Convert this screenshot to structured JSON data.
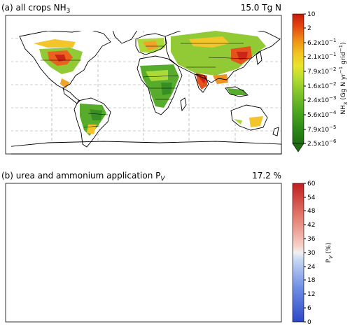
{
  "panels": [
    {
      "title": "(a) all crops NH",
      "title_sub": "3",
      "total": "15.0 Tg N",
      "colorbar": {
        "label_html": "NH3 (Gg N yr-1 grid-1)",
        "label_parts": [
          "NH",
          "3",
          " (Gg N yr",
          "−1",
          " grid",
          "−1",
          ")"
        ],
        "ticks": [
          "10",
          "2",
          "6.2x10-1",
          "2.1x10-1",
          "7.9x10-2",
          "1.6x10-2",
          "2.4x10-3",
          "5.6x10-4",
          "7.9x10-5",
          "2.5x10-6"
        ],
        "tick_html": [
          [
            "10",
            ""
          ],
          [
            "2",
            ""
          ],
          [
            "6.2x10",
            "−1"
          ],
          [
            "2.1x10",
            "−1"
          ],
          [
            "7.9x10",
            "−2"
          ],
          [
            "1.6x10",
            "−2"
          ],
          [
            "2.4x10",
            "−3"
          ],
          [
            "5.6x10",
            "−4"
          ],
          [
            "7.9x10",
            "−5"
          ],
          [
            "2.5x10",
            "−6"
          ]
        ],
        "colors": [
          "#1f6e12",
          "#2e8a18",
          "#4fa820",
          "#7cc22a",
          "#a8d830",
          "#d2e62e",
          "#f0e02a",
          "#f2b21e",
          "#ea7a14",
          "#e03a10",
          "#c81a0c"
        ]
      }
    },
    {
      "title": "(b) urea and ammonium application P",
      "title_sub": "V",
      "total": "17.2 %",
      "colorbar": {
        "label_parts": [
          "P",
          "V",
          " (%)"
        ],
        "ticks": [
          "60",
          "54",
          "48",
          "42",
          "36",
          "30",
          "24",
          "18",
          "12",
          "6",
          "0"
        ],
        "colors": [
          "#3050d0",
          "#5070e0",
          "#7898ec",
          "#a8c0f4",
          "#d4e0f8",
          "#f0f0f0",
          "#f8d0c8",
          "#f0a090",
          "#e07060",
          "#d04040",
          "#c02020"
        ]
      }
    }
  ]
}
